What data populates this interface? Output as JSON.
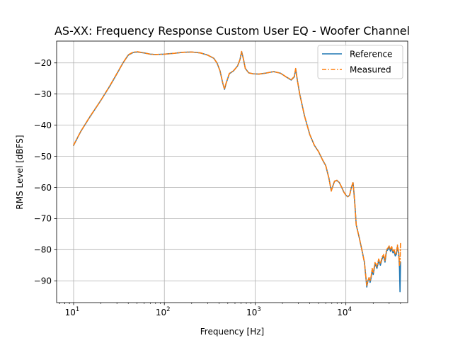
{
  "chart_data": {
    "type": "line",
    "title": "AS-XX: Frequency Response Custom User EQ - Woofer Channel",
    "xlabel": "Frequency [Hz]",
    "ylabel": "RMS Level [dBFS]",
    "xscale": "log",
    "xlim": [
      6.5,
      48000
    ],
    "ylim": [
      -97,
      -13
    ],
    "x_ticks": [
      {
        "base": "10",
        "exp": "1",
        "value": 10
      },
      {
        "base": "10",
        "exp": "2",
        "value": 100
      },
      {
        "base": "10",
        "exp": "3",
        "value": 1000
      },
      {
        "base": "10",
        "exp": "4",
        "value": 10000
      }
    ],
    "y_ticks": [
      {
        "label": "−20",
        "value": -20
      },
      {
        "label": "−30",
        "value": -30
      },
      {
        "label": "−40",
        "value": -40
      },
      {
        "label": "−50",
        "value": -50
      },
      {
        "label": "−60",
        "value": -60
      },
      {
        "label": "−70",
        "value": -70
      },
      {
        "label": "−80",
        "value": -80
      },
      {
        "label": "−90",
        "value": -90
      }
    ],
    "grid": true,
    "legend_position": "top-right",
    "series": [
      {
        "name": "Reference",
        "color": "#1f77b4",
        "style": "solid",
        "x": [
          10,
          12,
          15,
          20,
          25,
          30,
          35,
          40,
          45,
          50,
          60,
          70,
          80,
          100,
          130,
          160,
          200,
          250,
          300,
          350,
          380,
          410,
          440,
          460,
          480,
          520,
          580,
          640,
          680,
          710,
          740,
          780,
          850,
          950,
          1100,
          1300,
          1600,
          1900,
          2200,
          2500,
          2700,
          2800,
          2900,
          3100,
          3500,
          4000,
          4500,
          5000,
          5500,
          6000,
          6500,
          6900,
          7100,
          7500,
          8000,
          8500,
          9000,
          9500,
          10000,
          10500,
          11000,
          11500,
          12000,
          12300,
          12600,
          13000,
          14000,
          15000,
          16000,
          16500,
          17000,
          17500,
          18000,
          18500,
          19000,
          19500,
          20000,
          21000,
          22000,
          23000,
          24000,
          25000,
          26000,
          27000,
          28000,
          29000,
          30000,
          31000,
          32000,
          33000,
          34000,
          35000,
          36000,
          37000,
          38000,
          38500,
          39000,
          39500,
          40000
        ],
        "y": [
          -46.5,
          -42,
          -37.5,
          -32,
          -27.5,
          -23.5,
          -20,
          -17.5,
          -16.7,
          -16.5,
          -16.8,
          -17.2,
          -17.3,
          -17.2,
          -16.9,
          -16.6,
          -16.5,
          -16.8,
          -17.5,
          -18.5,
          -20,
          -22.5,
          -26.5,
          -28.5,
          -26.5,
          -23.5,
          -22.5,
          -21,
          -19,
          -16.4,
          -18.5,
          -21.8,
          -23.2,
          -23.5,
          -23.6,
          -23.3,
          -22.8,
          -23.3,
          -24.5,
          -25.5,
          -24.5,
          -22,
          -25,
          -30,
          -37,
          -43,
          -46.5,
          -48.5,
          -51,
          -53,
          -57,
          -61,
          -60,
          -58,
          -57.8,
          -58.5,
          -60,
          -61.5,
          -62.5,
          -63,
          -62.5,
          -60,
          -58.5,
          -62,
          -66,
          -72,
          -76,
          -80,
          -84,
          -88,
          -92,
          -90,
          -89,
          -90.5,
          -89,
          -86.5,
          -88,
          -84.5,
          -86,
          -83.5,
          -85,
          -83,
          -82,
          -84,
          -80.5,
          -80,
          -79,
          -80.5,
          -79.5,
          -81,
          -80.5,
          -82,
          -81.5,
          -79,
          -81,
          -83,
          -86,
          -93.5,
          -84
        ]
      },
      {
        "name": "Measured",
        "color": "#ff7f0e",
        "style": "dashdot",
        "x": [
          10,
          12,
          15,
          20,
          25,
          30,
          35,
          40,
          45,
          50,
          60,
          70,
          80,
          100,
          130,
          160,
          200,
          250,
          300,
          350,
          380,
          410,
          440,
          460,
          480,
          520,
          580,
          640,
          680,
          710,
          740,
          780,
          850,
          950,
          1100,
          1300,
          1600,
          1900,
          2200,
          2500,
          2700,
          2800,
          2900,
          3100,
          3500,
          4000,
          4500,
          5000,
          5500,
          6000,
          6500,
          6900,
          7100,
          7500,
          8000,
          8500,
          9000,
          9500,
          10000,
          10500,
          11000,
          11500,
          12000,
          12300,
          12600,
          13000,
          14000,
          15000,
          16000,
          16500,
          17000,
          17500,
          18000,
          18500,
          19000,
          19500,
          20000,
          21000,
          22000,
          23000,
          24000,
          25000,
          26000,
          27000,
          28000,
          29000,
          30000,
          31000,
          32000,
          33000,
          34000,
          35000,
          36000,
          37000,
          38000,
          38500,
          39000,
          39500,
          40000
        ],
        "y": [
          -46.4,
          -42,
          -37.4,
          -32,
          -27.4,
          -23.4,
          -20,
          -17.4,
          -16.6,
          -16.4,
          -16.8,
          -17.2,
          -17.3,
          -17.2,
          -16.9,
          -16.6,
          -16.5,
          -16.8,
          -17.5,
          -18.5,
          -20,
          -22.5,
          -26.4,
          -28.4,
          -26.4,
          -23.4,
          -22.5,
          -21,
          -19,
          -16.3,
          -18.5,
          -21.8,
          -23.2,
          -23.5,
          -23.6,
          -23.3,
          -22.8,
          -23.3,
          -24.5,
          -25.4,
          -24.4,
          -21.8,
          -25,
          -30,
          -37,
          -43,
          -46.5,
          -48.5,
          -51,
          -53,
          -57,
          -61.2,
          -60,
          -58,
          -57.7,
          -58.5,
          -60,
          -61.5,
          -62.5,
          -63,
          -62.5,
          -60,
          -58.3,
          -62,
          -66,
          -72,
          -76,
          -80,
          -84,
          -88,
          -91.5,
          -90,
          -89,
          -90,
          -88.5,
          -86,
          -87.5,
          -84,
          -85.5,
          -83,
          -84.5,
          -82.5,
          -81.5,
          -83.5,
          -80,
          -79.5,
          -78.8,
          -80,
          -79,
          -80.5,
          -80,
          -81.5,
          -81,
          -78.5,
          -80.5,
          -82.5,
          -85,
          -84,
          -78
        ]
      }
    ]
  }
}
